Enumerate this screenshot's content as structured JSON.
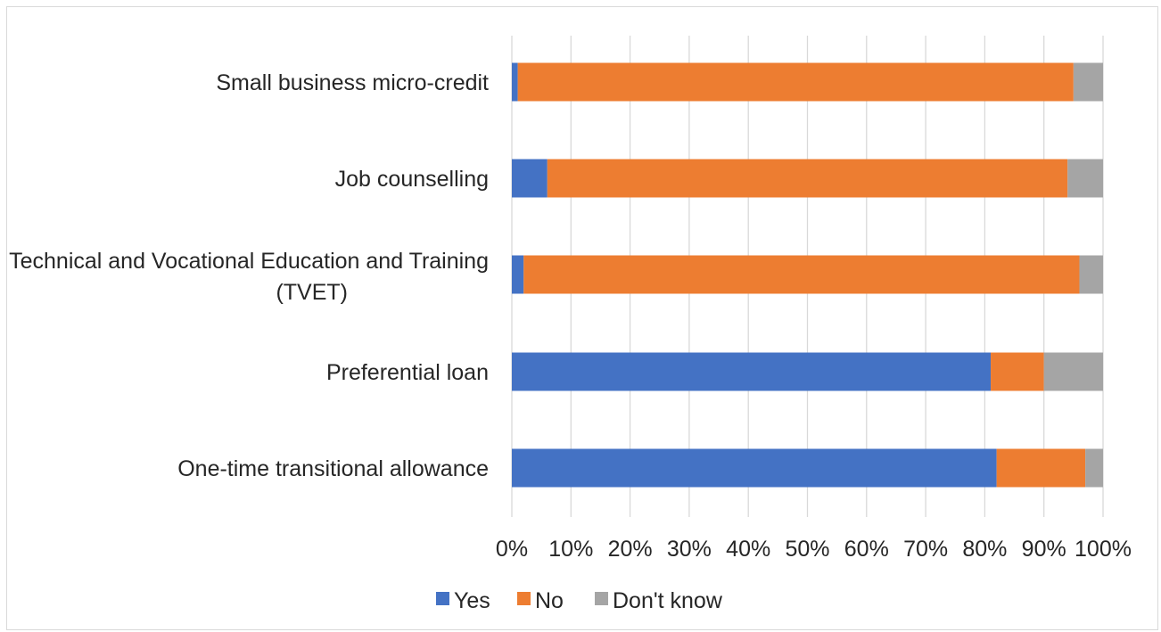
{
  "chart_data": {
    "type": "bar",
    "orientation": "horizontal",
    "stacked": "percent",
    "categories": [
      "Small business micro-credit",
      "Job counselling",
      "Technical and Vocational Education and Training (TVET)",
      "Preferential loan",
      "One-time transitional allowance"
    ],
    "series": [
      {
        "name": "Yes",
        "color": "#4472c4",
        "values": [
          1,
          6,
          2,
          81,
          82
        ]
      },
      {
        "name": "No",
        "color": "#ed7d31",
        "values": [
          94,
          88,
          94,
          9,
          15
        ]
      },
      {
        "name": "Don't know",
        "color": "#a5a5a5",
        "values": [
          5,
          6,
          4,
          10,
          3
        ]
      }
    ],
    "x_ticks": [
      "0%",
      "10%",
      "20%",
      "30%",
      "40%",
      "50%",
      "60%",
      "70%",
      "80%",
      "90%",
      "100%"
    ],
    "xlim": [
      0,
      100
    ],
    "grid": true,
    "legend_position": "bottom",
    "title": "",
    "xlabel": "",
    "ylabel": ""
  }
}
